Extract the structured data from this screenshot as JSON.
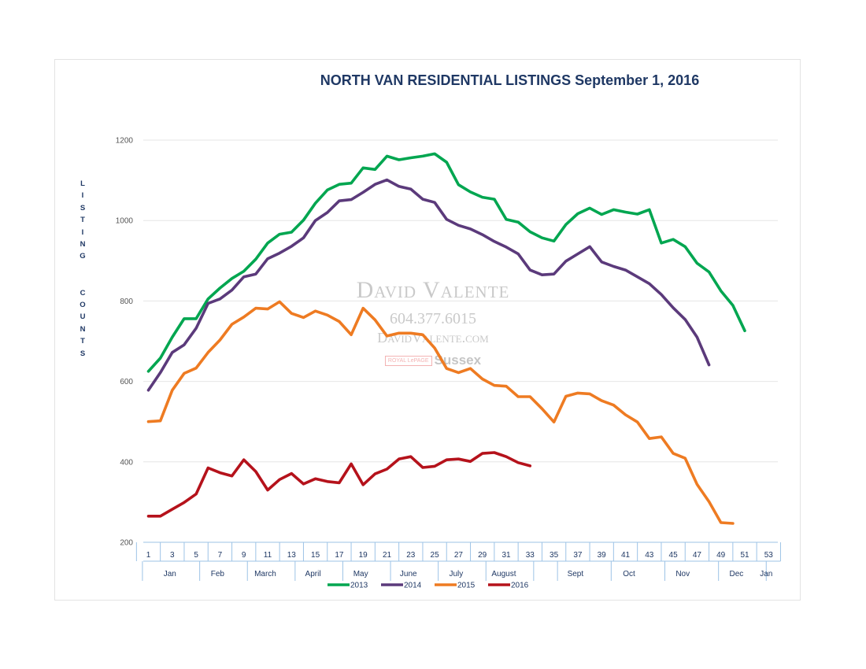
{
  "chart_data": {
    "type": "line",
    "title": "NORTH VAN RESIDENTIAL LISTINGS September  1, 2016",
    "ylabel": "L I S T I N G   C O U N T S",
    "xlabel": "",
    "ylim": [
      200,
      1200
    ],
    "yticks": [
      200,
      400,
      600,
      800,
      1000,
      1200
    ],
    "xlim": [
      1,
      53
    ],
    "xticks": [
      1,
      3,
      5,
      7,
      9,
      11,
      13,
      15,
      17,
      19,
      21,
      23,
      25,
      27,
      29,
      31,
      33,
      35,
      37,
      39,
      41,
      43,
      45,
      47,
      49,
      51,
      53
    ],
    "months": [
      {
        "label": "Jan",
        "at": 2.8
      },
      {
        "label": "Feb",
        "at": 6.8
      },
      {
        "label": "March",
        "at": 10.8
      },
      {
        "label": "April",
        "at": 14.8
      },
      {
        "label": "May",
        "at": 18.8
      },
      {
        "label": "June",
        "at": 22.8
      },
      {
        "label": "July",
        "at": 26.8
      },
      {
        "label": "August",
        "at": 30.8
      },
      {
        "label": "Sept",
        "at": 36.8
      },
      {
        "label": "Oct",
        "at": 41.3
      },
      {
        "label": "Nov",
        "at": 45.8
      },
      {
        "label": "Dec",
        "at": 50.3
      },
      {
        "label": "Jan",
        "at": 52.8
      }
    ],
    "month_dividers": [
      0,
      4.8,
      8.8,
      12.8,
      16.8,
      20.8,
      24.8,
      28.8,
      32.8,
      34.8,
      39.3,
      43.8,
      48.3,
      52.3
    ],
    "grid": true,
    "legend_position": "bottom",
    "series": [
      {
        "name": "2013",
        "color": "#00a650",
        "x": [
          1,
          2,
          3,
          4,
          5,
          6,
          7,
          8,
          9,
          10,
          11,
          12,
          13,
          14,
          15,
          16,
          17,
          18,
          19,
          20,
          21,
          22,
          23,
          24,
          25,
          26,
          27,
          28,
          29,
          30,
          31,
          32,
          33,
          34,
          35,
          36,
          37,
          38,
          39,
          40,
          41,
          42,
          43,
          44,
          45,
          46,
          47,
          48,
          49,
          50,
          51
        ],
        "y": [
          625,
          658,
          710,
          756,
          756,
          805,
          832,
          856,
          874,
          904,
          944,
          966,
          971,
          1001,
          1043,
          1076,
          1090,
          1093,
          1131,
          1127,
          1160,
          1151,
          1156,
          1160,
          1166,
          1145,
          1089,
          1071,
          1058,
          1053,
          1003,
          996,
          972,
          957,
          949,
          990,
          1017,
          1031,
          1015,
          1027,
          1021,
          1016,
          1027,
          944,
          953,
          935,
          894,
          872,
          825,
          789,
          726
        ]
      },
      {
        "name": "2014",
        "color": "#5b3a7b",
        "x": [
          1,
          2,
          3,
          4,
          5,
          6,
          7,
          8,
          9,
          10,
          11,
          12,
          13,
          14,
          15,
          16,
          17,
          18,
          19,
          20,
          21,
          22,
          23,
          24,
          25,
          26,
          27,
          28,
          29,
          30,
          31,
          32,
          33,
          34,
          35,
          36,
          37,
          38,
          39,
          40,
          41,
          42,
          43,
          44,
          45,
          46,
          47,
          48
        ],
        "y": [
          578,
          622,
          672,
          691,
          732,
          794,
          805,
          827,
          860,
          867,
          905,
          919,
          936,
          957,
          1000,
          1020,
          1049,
          1052,
          1070,
          1090,
          1101,
          1085,
          1078,
          1053,
          1045,
          1003,
          988,
          979,
          965,
          948,
          934,
          917,
          877,
          865,
          867,
          899,
          917,
          935,
          897,
          886,
          877,
          860,
          843,
          816,
          783,
          754,
          710,
          641
        ]
      },
      {
        "name": "2015",
        "color": "#ee7b22",
        "x": [
          1,
          2,
          3,
          4,
          5,
          6,
          7,
          8,
          9,
          10,
          11,
          12,
          13,
          14,
          15,
          16,
          17,
          18,
          19,
          20,
          21,
          22,
          23,
          24,
          25,
          26,
          27,
          28,
          29,
          30,
          31,
          32,
          33,
          34,
          35,
          36,
          37,
          38,
          39,
          40,
          41,
          42,
          43,
          44,
          45,
          46,
          47,
          48,
          49,
          50
        ],
        "y": [
          500,
          502,
          578,
          620,
          633,
          672,
          703,
          742,
          760,
          782,
          780,
          798,
          769,
          759,
          775,
          765,
          749,
          716,
          782,
          753,
          713,
          720,
          720,
          716,
          683,
          632,
          622,
          632,
          606,
          590,
          588,
          562,
          562,
          532,
          499,
          563,
          571,
          569,
          552,
          541,
          517,
          499,
          458,
          462,
          421,
          409,
          344,
          301,
          249,
          247
        ]
      },
      {
        "name": "2016",
        "color": "#b5121b",
        "x": [
          1,
          2,
          3,
          4,
          5,
          6,
          7,
          8,
          9,
          10,
          11,
          12,
          13,
          14,
          15,
          16,
          17,
          18,
          19,
          20,
          21,
          22,
          23,
          24,
          25,
          26,
          27,
          28,
          29,
          30,
          31,
          32,
          33
        ],
        "y": [
          265,
          265,
          282,
          299,
          320,
          385,
          373,
          365,
          405,
          376,
          330,
          356,
          371,
          345,
          358,
          351,
          348,
          395,
          343,
          370,
          382,
          407,
          413,
          386,
          389,
          405,
          407,
          401,
          421,
          423,
          413,
          398,
          390
        ]
      }
    ]
  },
  "watermark": {
    "name": "David Valente",
    "phone": "604.377.6015",
    "site": "DavidValente.com",
    "brand_small": "ROYAL LePAGE",
    "brand": "Sussex"
  }
}
